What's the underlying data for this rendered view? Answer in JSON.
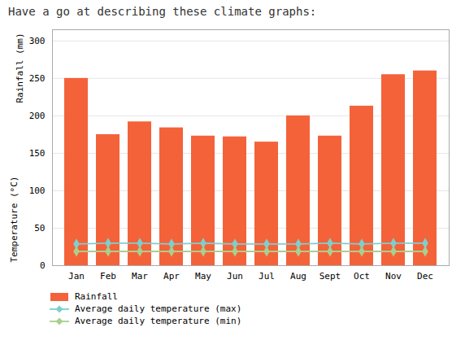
{
  "chart_data": {
    "type": "bar",
    "title": "Have a go at describing these climate graphs:",
    "ylabel": [
      "Rainfall (mm)",
      "Temperature (°C)"
    ],
    "categories": [
      "Jan",
      "Feb",
      "Mar",
      "Apr",
      "May",
      "Jun",
      "Jul",
      "Aug",
      "Sept",
      "Oct",
      "Nov",
      "Dec"
    ],
    "series": [
      {
        "name": "Rainfall",
        "type": "bar",
        "color": "#f4623a",
        "values": [
          250,
          175,
          192,
          184,
          173,
          172,
          165,
          200,
          173,
          213,
          255,
          260
        ]
      },
      {
        "name": "Average daily temperature (max)",
        "type": "line",
        "color": "#7dcfcf",
        "marker": "diamond",
        "values": [
          29,
          30,
          30,
          29,
          30,
          29,
          29,
          29,
          30,
          29,
          30,
          30
        ]
      },
      {
        "name": "Average daily temperature (min)",
        "type": "line",
        "color": "#a8d08d",
        "marker": "diamond",
        "values": [
          19,
          19,
          19,
          19,
          19,
          19,
          19,
          19,
          19,
          19,
          19,
          19
        ]
      }
    ],
    "ylim": [
      0,
      315
    ],
    "yticks": [
      0,
      50,
      100,
      150,
      200,
      250,
      300
    ],
    "grid": true,
    "legend": "bottom"
  }
}
